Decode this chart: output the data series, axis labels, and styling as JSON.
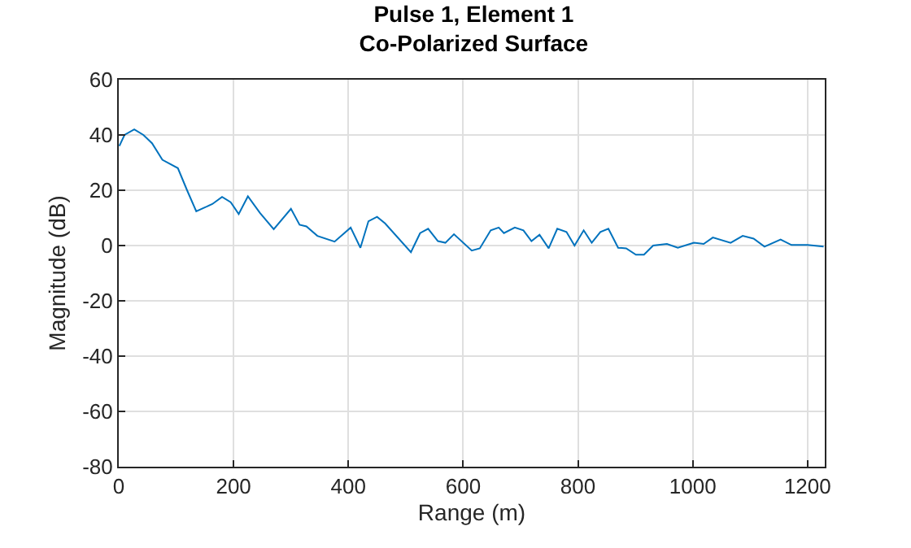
{
  "chart_data": {
    "type": "line",
    "title": "Pulse 1, Element 1\nCo-Polarized Surface",
    "xlabel": "Range (m)",
    "ylabel": "Magnitude (dB)",
    "x": [
      1,
      10,
      27,
      43,
      58,
      76,
      103,
      119,
      135,
      163,
      180,
      195,
      209,
      225,
      246,
      270,
      300,
      315,
      327,
      346,
      376,
      404,
      421,
      435,
      450,
      464,
      509,
      525,
      539,
      556,
      569,
      584,
      615,
      629,
      648,
      662,
      671,
      690,
      705,
      719,
      733,
      749,
      764,
      780,
      794,
      810,
      824,
      839,
      853,
      870,
      884,
      901,
      915,
      931,
      955,
      974,
      1002,
      1019,
      1035,
      1066,
      1087,
      1106,
      1125,
      1153,
      1172,
      1200,
      1228
    ],
    "series": [
      {
        "color": "#0072bd",
        "values": [
          36,
          40,
          42,
          40,
          37,
          31,
          28,
          20,
          12.4,
          15,
          17.6,
          15.7,
          11.4,
          17.8,
          11.8,
          5.9,
          13.3,
          7.5,
          6.9,
          3.5,
          1.4,
          6.5,
          -0.8,
          8.8,
          10.4,
          8,
          -2.4,
          4.5,
          6.1,
          1.6,
          1,
          4.1,
          -1.8,
          -1,
          5.5,
          6.5,
          4.5,
          6.5,
          5.5,
          1.6,
          3.9,
          -1,
          6.1,
          4.9,
          0,
          5.5,
          1,
          4.9,
          6.1,
          -0.8,
          -1,
          -3.3,
          -3.3,
          0,
          0.6,
          -0.8,
          1,
          0.6,
          2.9,
          1,
          3.5,
          2.5,
          -0.4,
          2.2,
          0.2,
          0.2,
          -0.4
        ]
      }
    ],
    "xlim": [
      0,
      1230
    ],
    "xticks": [
      0,
      200,
      400,
      600,
      800,
      1000,
      1200
    ],
    "ylim": [
      -80,
      60
    ],
    "yticks": [
      -80,
      -60,
      -40,
      -20,
      0,
      20,
      40,
      60
    ],
    "grid": true,
    "marker": "none",
    "line_style": "solid"
  }
}
